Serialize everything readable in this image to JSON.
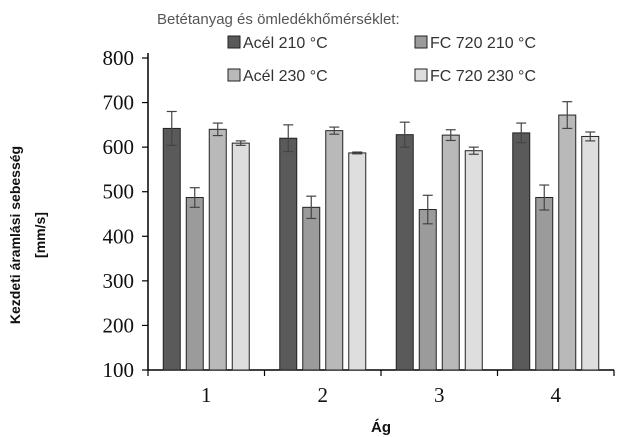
{
  "header": "Betétanyag és ömledékhőmérséklet:",
  "chart_data": {
    "type": "bar",
    "title": "",
    "xlabel": "Ág",
    "ylabel_line1": "Kezdeti áramlási sebesség",
    "ylabel_line2": "[mm/s]",
    "categories": [
      "1",
      "2",
      "3",
      "4"
    ],
    "ylim": [
      100,
      800
    ],
    "yticks": [
      "100",
      "200",
      "300",
      "400",
      "500",
      "600",
      "700",
      "800"
    ],
    "grid": false,
    "legend_position": "top",
    "series": [
      {
        "name": "Acél 210 °C",
        "color": "#5a5a5a",
        "values": [
          642,
          620,
          628,
          632
        ],
        "errors": [
          38,
          30,
          28,
          22
        ]
      },
      {
        "name": "FC 720 210 °C",
        "color": "#9b9b9b",
        "values": [
          487,
          465,
          460,
          487
        ],
        "errors": [
          22,
          25,
          32,
          28
        ]
      },
      {
        "name": "Acél 230 °C",
        "color": "#b9b9b9",
        "values": [
          640,
          637,
          627,
          672
        ],
        "errors": [
          14,
          8,
          12,
          30
        ]
      },
      {
        "name": "FC 720 230 °C",
        "color": "#dedede",
        "values": [
          609,
          587,
          592,
          624
        ],
        "errors": [
          5,
          2,
          8,
          10
        ]
      }
    ]
  }
}
